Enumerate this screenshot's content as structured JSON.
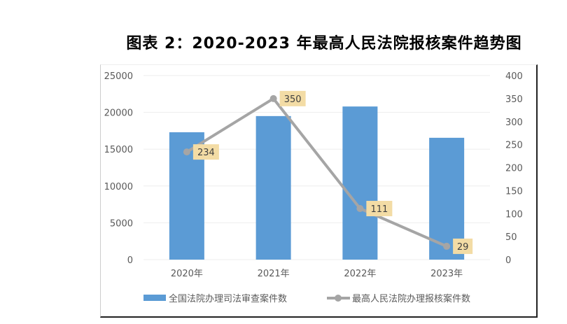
{
  "chart_data": {
    "type": "bar",
    "title": "图表 2：2020-2023 年最高人民法院报核案件趋势图",
    "categories": [
      "2020年",
      "2021年",
      "2022年",
      "2023年"
    ],
    "series": [
      {
        "name": "全国法院办理司法审查案件数",
        "type": "bar",
        "axis": "left",
        "values": [
          17300,
          19500,
          20800,
          16550
        ],
        "color": "#5B9BD5"
      },
      {
        "name": "最高人民法院办理报核案件数",
        "type": "line",
        "axis": "right",
        "values": [
          234,
          350,
          111,
          29
        ],
        "data_labels": [
          "234",
          "350",
          "111",
          "29"
        ],
        "color": "#A5A5A5"
      }
    ],
    "y_left": {
      "ylim": [
        0,
        25000
      ],
      "ticks": [
        "0",
        "5000",
        "10000",
        "15000",
        "20000",
        "25000"
      ]
    },
    "y_right": {
      "ylim": [
        0,
        400
      ],
      "ticks": [
        "0",
        "50",
        "100",
        "150",
        "200",
        "250",
        "300",
        "350",
        "400"
      ]
    },
    "grid": true,
    "legend": "bottom"
  }
}
